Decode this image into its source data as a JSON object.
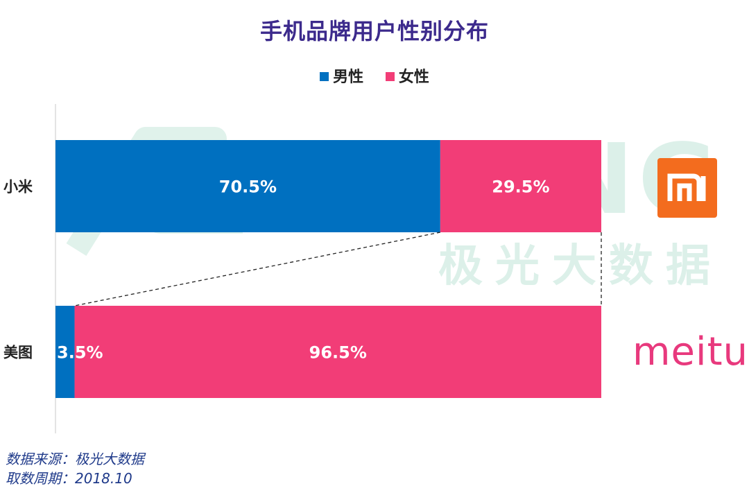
{
  "chart_data": {
    "type": "bar",
    "orientation": "horizontal",
    "stacked": true,
    "title": "手机品牌用户性别分布",
    "legend_position": "top",
    "categories": [
      "小米",
      "美图"
    ],
    "series": [
      {
        "name": "男性",
        "color": "#0070c0",
        "values": [
          70.5,
          3.5
        ],
        "labels": [
          "70.5%",
          "3.5%"
        ]
      },
      {
        "name": "女性",
        "color": "#f23d77",
        "values": [
          29.5,
          96.5
        ],
        "labels": [
          "29.5%",
          "96.5%"
        ]
      }
    ],
    "xlim": [
      0,
      100
    ],
    "grid": false
  },
  "logos": {
    "xiaomi": {
      "color": "#f36c1e",
      "icon": "mi-logo"
    },
    "meitu": {
      "text": "meitu",
      "color": "#e8397d"
    }
  },
  "watermark": {
    "brand": "JIGUANG",
    "cn": "极光大数据",
    "color": "#2aa67a"
  },
  "footer": {
    "source": "数据来源：极光大数据",
    "period": "取数周期：2018.10"
  }
}
